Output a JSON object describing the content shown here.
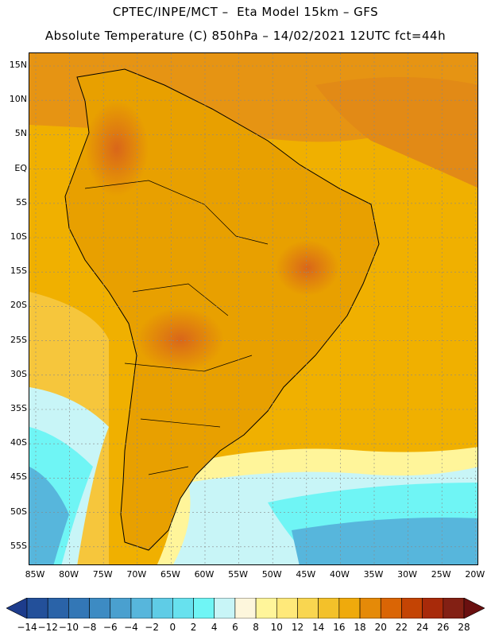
{
  "header": {
    "line1": "CPTEC/INPE/MCT –  Eta Model 15km – GFS",
    "line2": "Absolute Temperature (C) 850hPa – 14/02/2021 12UTC fct=44h"
  },
  "map": {
    "lat_labels": [
      "15N",
      "10N",
      "5N",
      "EQ",
      "5S",
      "10S",
      "15S",
      "20S",
      "25S",
      "30S",
      "35S",
      "40S",
      "45S",
      "50S",
      "55S"
    ],
    "lon_labels": [
      "85W",
      "80W",
      "75W",
      "70W",
      "65W",
      "60W",
      "55W",
      "50W",
      "45W",
      "40W",
      "35W",
      "30W",
      "25W",
      "20W"
    ],
    "ocean_color": "#f0b000",
    "land_color": "#e8a000",
    "boundary_color": "#000000",
    "grid": "dotted"
  },
  "colorbar": {
    "labels": [
      "-14",
      "-12",
      "-10",
      "-8",
      "-6",
      "-4",
      "-2",
      "0",
      "2",
      "4",
      "6",
      "8",
      "10",
      "12",
      "14",
      "16",
      "18",
      "20",
      "22",
      "24",
      "26",
      "28"
    ],
    "colors": [
      "#1d3c8c",
      "#23509a",
      "#2a63a8",
      "#3377b6",
      "#3d8bc3",
      "#4aa0cf",
      "#57b6dc",
      "#5fcce6",
      "#67e1ee",
      "#6ff5f5",
      "#c8f5f7",
      "#fdf6dc",
      "#fff59a",
      "#ffe97a",
      "#f9d650",
      "#f3c12a",
      "#efaa0c",
      "#e58a08",
      "#da6505",
      "#c44404",
      "#a82a0a",
      "#832014",
      "#6a1010"
    ]
  }
}
